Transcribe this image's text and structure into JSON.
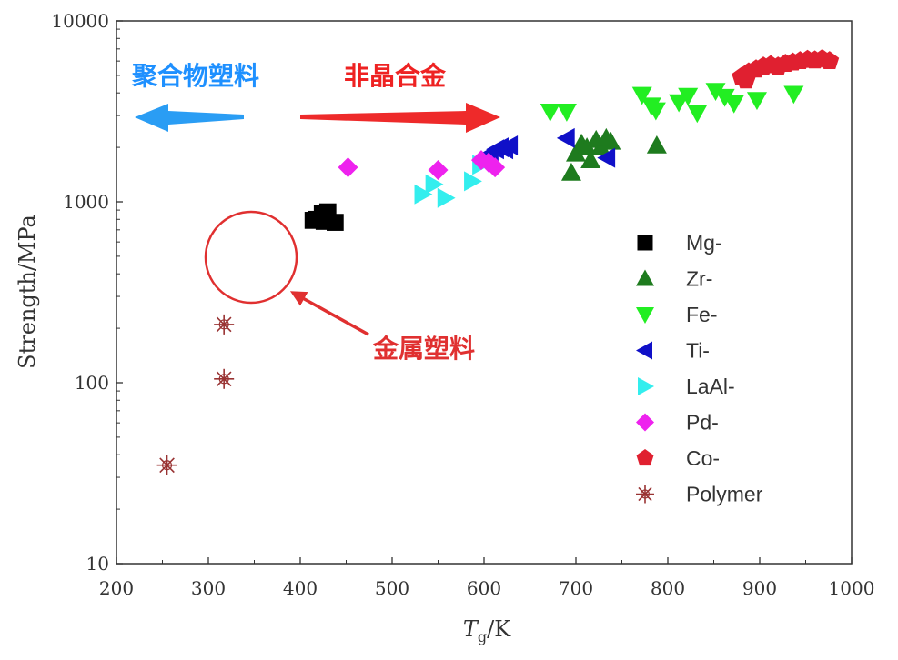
{
  "chart_data": {
    "type": "scatter",
    "title": "",
    "xlabel": "Tg/K",
    "xlabel_main": "T",
    "xlabel_sub": "g",
    "xlabel_rest": "/K",
    "ylabel": "Strength/MPa",
    "xlim": [
      200,
      1000
    ],
    "ylim": [
      10,
      10000
    ],
    "yscale": "log",
    "x_ticks": [
      200,
      300,
      400,
      500,
      600,
      700,
      800,
      900,
      1000
    ],
    "y_ticks": [
      10,
      100,
      1000,
      10000
    ],
    "legend_position": "right",
    "series": [
      {
        "name": "Mg-",
        "marker": "square",
        "color": "#000000",
        "points": [
          [
            418,
            800
          ],
          [
            424,
            860
          ],
          [
            430,
            880
          ],
          [
            426,
            780
          ],
          [
            438,
            770
          ],
          [
            414,
            790
          ]
        ]
      },
      {
        "name": "Zr-",
        "marker": "triangle-up",
        "color": "#1e7b1e",
        "points": [
          [
            695,
            1450
          ],
          [
            700,
            1850
          ],
          [
            706,
            2100
          ],
          [
            712,
            2000
          ],
          [
            716,
            1700
          ],
          [
            722,
            2200
          ],
          [
            727,
            2000
          ],
          [
            733,
            2250
          ],
          [
            738,
            2150
          ],
          [
            788,
            2050
          ]
        ]
      },
      {
        "name": "Fe-",
        "marker": "triangle-down",
        "color": "#22ee22",
        "points": [
          [
            672,
            3150
          ],
          [
            690,
            3150
          ],
          [
            772,
            3900
          ],
          [
            782,
            3400
          ],
          [
            787,
            3200
          ],
          [
            812,
            3550
          ],
          [
            822,
            3850
          ],
          [
            832,
            3100
          ],
          [
            852,
            4100
          ],
          [
            862,
            3800
          ],
          [
            872,
            3500
          ],
          [
            897,
            3650
          ],
          [
            937,
            3950
          ]
        ]
      },
      {
        "name": "Ti-",
        "marker": "triangle-left",
        "color": "#1010c8",
        "points": [
          [
            607,
            1850
          ],
          [
            613,
            1950
          ],
          [
            618,
            2000
          ],
          [
            623,
            1950
          ],
          [
            628,
            2050
          ],
          [
            690,
            2250
          ],
          [
            734,
            1750
          ]
        ]
      },
      {
        "name": "LaAl-",
        "marker": "triangle-right",
        "color": "#33eeee",
        "points": [
          [
            533,
            1100
          ],
          [
            545,
            1250
          ],
          [
            558,
            1050
          ],
          [
            587,
            1300
          ],
          [
            596,
            1600
          ]
        ]
      },
      {
        "name": "Pd-",
        "marker": "diamond",
        "color": "#ee22ee",
        "points": [
          [
            452,
            1550
          ],
          [
            550,
            1500
          ],
          [
            597,
            1700
          ],
          [
            605,
            1650
          ],
          [
            612,
            1550
          ]
        ]
      },
      {
        "name": "Co-",
        "marker": "pentagon",
        "color": "#e02030",
        "points": [
          [
            880,
            4900
          ],
          [
            888,
            5200
          ],
          [
            896,
            5400
          ],
          [
            904,
            5600
          ],
          [
            912,
            5700
          ],
          [
            920,
            5600
          ],
          [
            928,
            5800
          ],
          [
            936,
            5900
          ],
          [
            944,
            6000
          ],
          [
            952,
            6100
          ],
          [
            960,
            6050
          ],
          [
            968,
            6150
          ],
          [
            976,
            6000
          ],
          [
            885,
            4700
          ]
        ]
      },
      {
        "name": "Polymer",
        "marker": "star",
        "color": "#993333",
        "points": [
          [
            255,
            35
          ],
          [
            317,
            105
          ],
          [
            317,
            210
          ]
        ]
      }
    ],
    "annotations": [
      {
        "label": "聚合物塑料",
        "color": "#1e90ff",
        "arrow_direction": "left"
      },
      {
        "label": "非晶合金",
        "color": "#ee2222",
        "arrow_direction": "right"
      },
      {
        "label": "金属塑料",
        "color": "#e03030",
        "arrow_direction": "up-left",
        "target_x": 350,
        "target_y": 500
      }
    ]
  }
}
